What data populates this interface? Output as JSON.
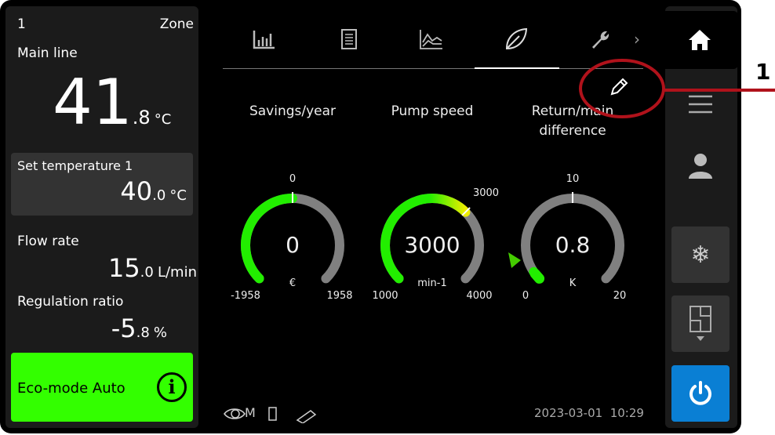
{
  "left": {
    "zone_num": "1",
    "zone_label": "Zone",
    "main_line": "Main line",
    "main_temp_int": "41",
    "main_temp_dec": ".8",
    "main_unit": "°C",
    "set_label": "Set temperature 1",
    "set_int": "40",
    "set_dec": ".0",
    "set_unit": "°C",
    "flow_label": "Flow rate",
    "flow_int": "15",
    "flow_dec": ".0",
    "flow_unit": "L/min",
    "reg_label": "Regulation ratio",
    "reg_int": "-5",
    "reg_dec": ".8",
    "reg_unit": "%",
    "eco_label": "Eco-mode Auto"
  },
  "tabs": [
    "bar-chart-icon",
    "document-icon",
    "line-chart-icon",
    "leaf-icon",
    "wrench-icon"
  ],
  "gauges": [
    {
      "title": "Savings/year",
      "value": "0",
      "unit": "€",
      "min": "-1958",
      "max": "1958",
      "mark": "0",
      "min_v": -1958,
      "max_v": 1958,
      "v": 0,
      "mark_v": 0
    },
    {
      "title": "Pump speed",
      "value": "3000",
      "unit": "min-1",
      "min": "1000",
      "max": "4000",
      "mark": "3000",
      "min_v": 1000,
      "max_v": 4000,
      "v": 3000,
      "mark_v": 3000
    },
    {
      "title": "Return/main difference",
      "value": "0.8",
      "unit": "K",
      "min": "0",
      "max": "20",
      "mark": "10",
      "min_v": 0,
      "max_v": 20,
      "v": 0.8,
      "mark_v": 10
    }
  ],
  "footer": {
    "datetime": "2023-03-01  10:29",
    "mode_letter": "M"
  },
  "callout": "1",
  "colors": {
    "green": "#22ee00",
    "accent_blue": "#0a7fd4",
    "callout_red": "#b0121b"
  }
}
